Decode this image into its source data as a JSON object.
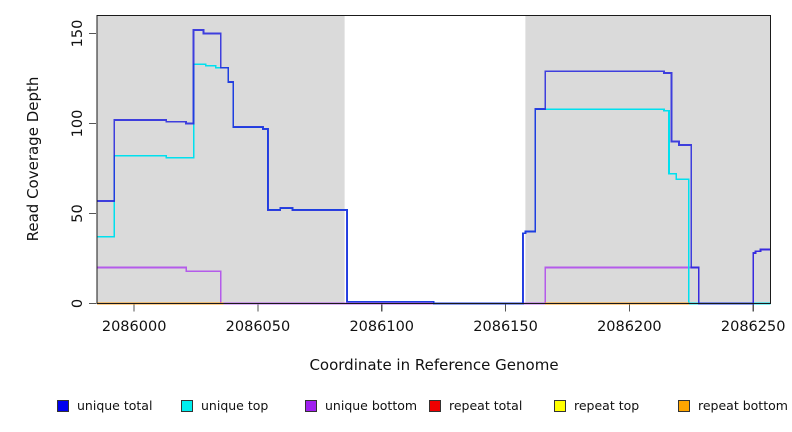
{
  "figure": {
    "xlabel": "Coordinate in Reference Genome",
    "ylabel": "Read Coverage Depth"
  },
  "chart_data": {
    "type": "line",
    "subtype": "step-after",
    "title": "",
    "xlabel": "Coordinate in Reference Genome",
    "ylabel": "Read Coverage Depth",
    "xlim": [
      2085985,
      2086257
    ],
    "ylim": [
      0,
      160
    ],
    "x_ticks": [
      2086000,
      2086050,
      2086100,
      2086150,
      2086200,
      2086250
    ],
    "y_ticks": [
      0,
      50,
      100,
      150
    ],
    "grid": false,
    "background": "#ffffff",
    "band_color": "#dadada",
    "highlight_bands": [
      {
        "x0": 2085985,
        "x1": 2086085,
        "note": "repeat region (gray)"
      },
      {
        "x0": 2086158,
        "x1": 2086257,
        "note": "repeat region (gray)"
      }
    ],
    "legend_position": "bottom",
    "series": [
      {
        "name": "unique total",
        "color": "#2222dd",
        "opacity": 0.85,
        "width": 1.8,
        "points": [
          [
            2085985,
            57
          ],
          [
            2085992,
            102
          ],
          [
            2086013,
            101
          ],
          [
            2086021,
            100
          ],
          [
            2086024,
            152
          ],
          [
            2086028,
            150
          ],
          [
            2086035,
            131
          ],
          [
            2086038,
            123
          ],
          [
            2086040,
            98
          ],
          [
            2086052,
            97
          ],
          [
            2086054,
            52
          ],
          [
            2086059,
            53
          ],
          [
            2086064,
            52
          ],
          [
            2086086,
            1
          ],
          [
            2086121,
            0
          ],
          [
            2086157,
            39
          ],
          [
            2086158,
            40
          ],
          [
            2086162,
            108
          ],
          [
            2086166,
            129
          ],
          [
            2086214,
            128
          ],
          [
            2086217,
            90
          ],
          [
            2086220,
            88
          ],
          [
            2086225,
            20
          ],
          [
            2086228,
            0
          ],
          [
            2086250,
            28
          ],
          [
            2086251,
            29
          ],
          [
            2086253,
            30
          ],
          [
            2086257,
            30
          ]
        ]
      },
      {
        "name": "unique top",
        "color": "#00e0ee",
        "opacity": 1,
        "width": 1.6,
        "points": [
          [
            2085985,
            37
          ],
          [
            2085992,
            82
          ],
          [
            2086013,
            81
          ],
          [
            2086024,
            133
          ],
          [
            2086029,
            132
          ],
          [
            2086033,
            131
          ],
          [
            2086038,
            123
          ],
          [
            2086040,
            98
          ],
          [
            2086052,
            97
          ],
          [
            2086054,
            52
          ],
          [
            2086059,
            53
          ],
          [
            2086064,
            52
          ],
          [
            2086086,
            1
          ],
          [
            2086121,
            0
          ],
          [
            2086157,
            39
          ],
          [
            2086158,
            40
          ],
          [
            2086162,
            108
          ],
          [
            2086214,
            107
          ],
          [
            2086216,
            72
          ],
          [
            2086219,
            69
          ],
          [
            2086224,
            0
          ],
          [
            2086257,
            0
          ]
        ]
      },
      {
        "name": "unique bottom",
        "color": "#a52af0",
        "opacity": 0.72,
        "width": 1.6,
        "points": [
          [
            2085985,
            20
          ],
          [
            2086021,
            18
          ],
          [
            2086035,
            0
          ],
          [
            2086166,
            20
          ],
          [
            2086228,
            0
          ],
          [
            2086250,
            28
          ],
          [
            2086251,
            29
          ],
          [
            2086253,
            30
          ],
          [
            2086257,
            30
          ]
        ]
      },
      {
        "name": "repeat total",
        "color": "#ee0000",
        "opacity": 0.55,
        "width": 1.3,
        "points": [
          [
            2085985,
            0
          ],
          [
            2086257,
            0
          ]
        ]
      },
      {
        "name": "repeat top",
        "color": "#ffff00",
        "opacity": 1,
        "width": 1.3,
        "points": [
          [
            2085985,
            0
          ],
          [
            2086257,
            0
          ]
        ]
      },
      {
        "name": "repeat bottom",
        "color": "#ff9d17",
        "opacity": 1,
        "width": 1.6,
        "segments": [
          {
            "x0": 2085985,
            "x1": 2086036,
            "y": 0
          },
          {
            "x0": 2086166,
            "x1": 2086224,
            "y": 0
          }
        ]
      }
    ],
    "legend": {
      "items": [
        {
          "label": "unique total",
          "color": "#0000ee"
        },
        {
          "label": "unique top",
          "color": "#00eeee"
        },
        {
          "label": "unique bottom",
          "color": "#a020f0"
        },
        {
          "label": "repeat total",
          "color": "#ee0000"
        },
        {
          "label": "repeat top",
          "color": "#ffff00"
        },
        {
          "label": "repeat bottom",
          "color": "#ffa500"
        }
      ]
    }
  }
}
